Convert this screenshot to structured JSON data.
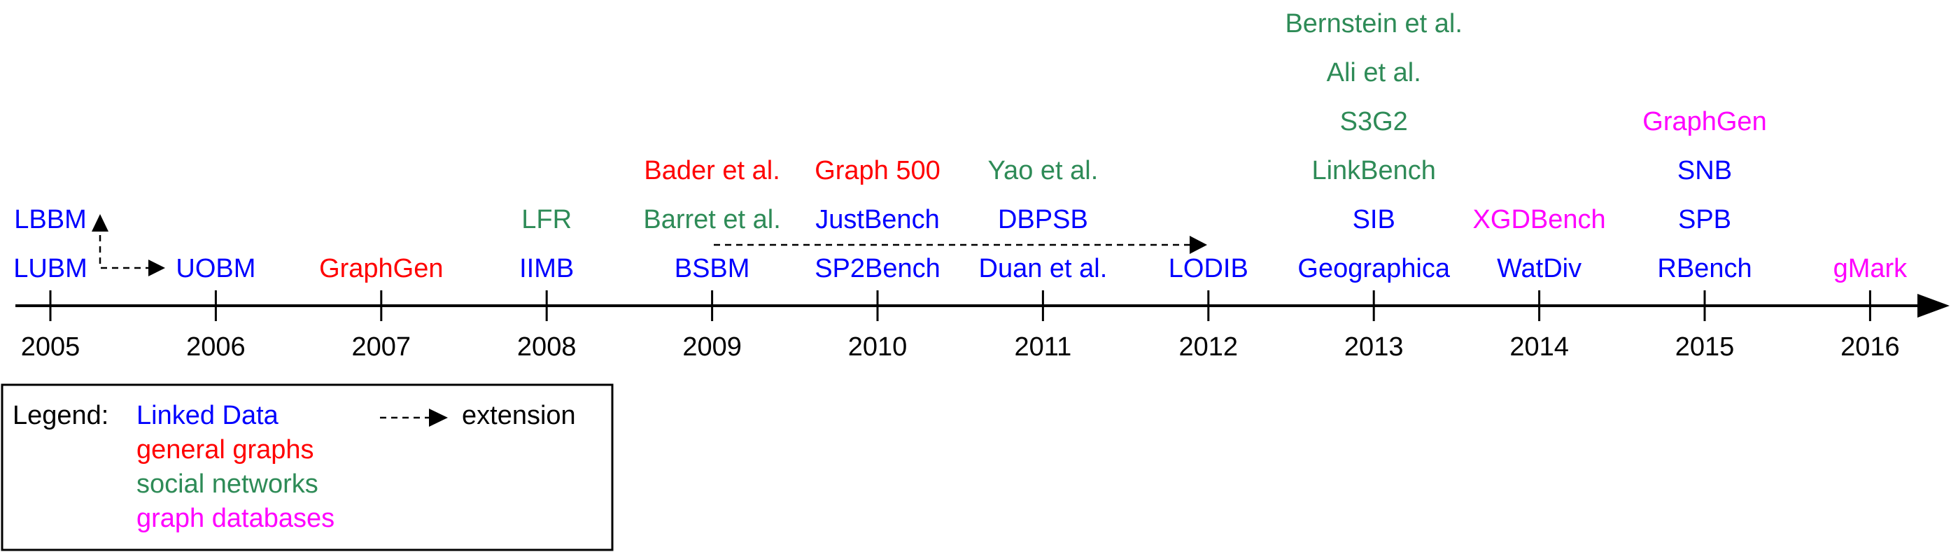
{
  "colors": {
    "linked_data": "#0000ff",
    "general_graphs": "#ff0000",
    "social_networks": "#2e8b57",
    "graph_databases": "#ff00ff",
    "axis": "#000000"
  },
  "years": [
    "2005",
    "2006",
    "2007",
    "2008",
    "2009",
    "2010",
    "2011",
    "2012",
    "2013",
    "2014",
    "2015",
    "2016"
  ],
  "benchmarks": [
    {
      "year": "2005",
      "stack": [
        {
          "label": "LUBM",
          "category": "linked_data"
        },
        {
          "label": "LBBM",
          "category": "linked_data"
        }
      ]
    },
    {
      "year": "2006",
      "stack": [
        {
          "label": "UOBM",
          "category": "linked_data"
        }
      ]
    },
    {
      "year": "2007",
      "stack": [
        {
          "label": "GraphGen",
          "category": "general_graphs"
        }
      ]
    },
    {
      "year": "2008",
      "stack": [
        {
          "label": "IIMB",
          "category": "linked_data"
        },
        {
          "label": "LFR",
          "category": "social_networks"
        }
      ]
    },
    {
      "year": "2009",
      "stack": [
        {
          "label": "BSBM",
          "category": "linked_data"
        },
        {
          "label": "Barret et al.",
          "category": "social_networks"
        },
        {
          "label": "Bader et al.",
          "category": "general_graphs"
        }
      ]
    },
    {
      "year": "2010",
      "stack": [
        {
          "label": "SP2Bench",
          "category": "linked_data"
        },
        {
          "label": "JustBench",
          "category": "linked_data"
        },
        {
          "label": "Graph 500",
          "category": "general_graphs"
        }
      ]
    },
    {
      "year": "2011",
      "stack": [
        {
          "label": "Duan et al.",
          "category": "linked_data"
        },
        {
          "label": "DBPSB",
          "category": "linked_data"
        },
        {
          "label": "Yao et al.",
          "category": "social_networks"
        }
      ]
    },
    {
      "year": "2012",
      "stack": [
        {
          "label": "LODIB",
          "category": "linked_data"
        }
      ]
    },
    {
      "year": "2013",
      "stack": [
        {
          "label": "Geographica",
          "category": "linked_data"
        },
        {
          "label": "SIB",
          "category": "linked_data"
        },
        {
          "label": "LinkBench",
          "category": "social_networks"
        },
        {
          "label": "S3G2",
          "category": "social_networks"
        },
        {
          "label": "Ali et al.",
          "category": "social_networks"
        },
        {
          "label": "Bernstein et al.",
          "category": "social_networks"
        }
      ]
    },
    {
      "year": "2014",
      "stack": [
        {
          "label": "WatDiv",
          "category": "linked_data"
        },
        {
          "label": "XGDBench",
          "category": "graph_databases"
        }
      ]
    },
    {
      "year": "2015",
      "stack": [
        {
          "label": "RBench",
          "category": "linked_data"
        },
        {
          "label": "SPB",
          "category": "linked_data"
        },
        {
          "label": "SNB",
          "category": "linked_data"
        },
        {
          "label": "GraphGen",
          "category": "graph_databases"
        }
      ]
    },
    {
      "year": "2016",
      "stack": [
        {
          "label": "gMark",
          "category": "graph_databases"
        }
      ]
    }
  ],
  "extensions": [
    {
      "from": "LUBM",
      "to": "UOBM"
    },
    {
      "from": "LUBM",
      "to": "LBBM"
    },
    {
      "from": "BSBM",
      "to": "LODIB"
    }
  ],
  "legend": {
    "title": "Legend:",
    "extension_label": "extension",
    "items": [
      {
        "label": "Linked Data",
        "category": "linked_data"
      },
      {
        "label": "general graphs",
        "category": "general_graphs"
      },
      {
        "label": "social networks",
        "category": "social_networks"
      },
      {
        "label": "graph databases",
        "category": "graph_databases"
      }
    ]
  }
}
